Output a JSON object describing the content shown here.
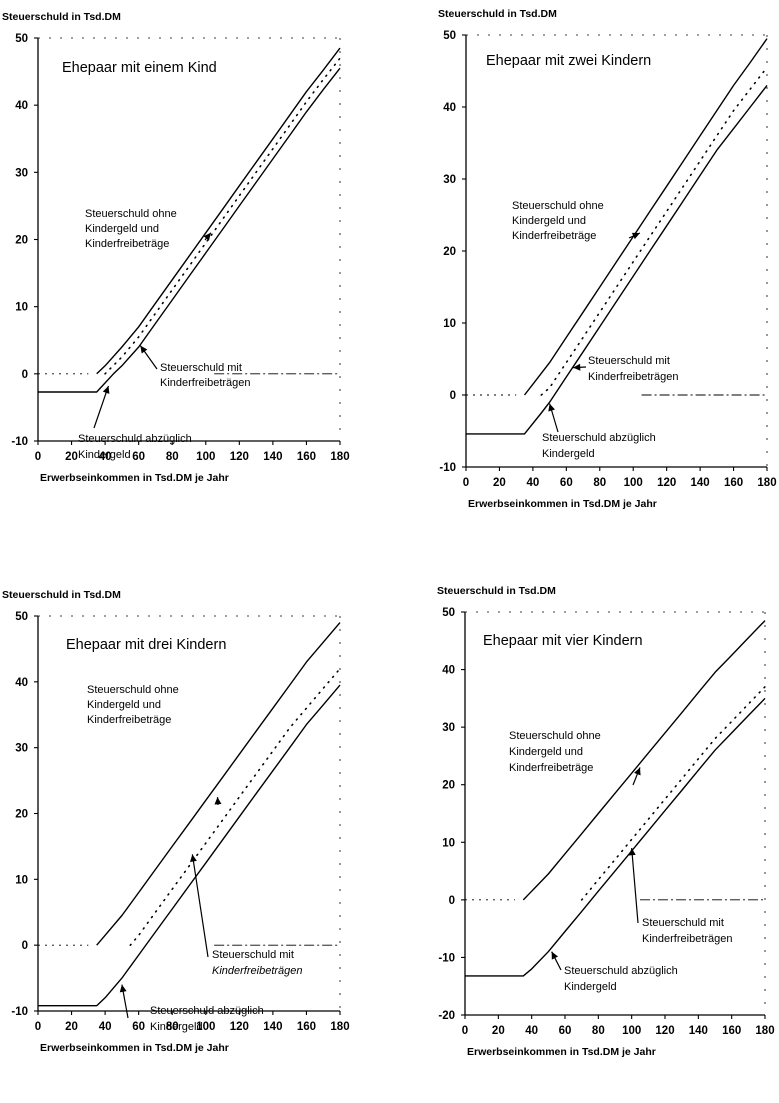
{
  "chart_data": [
    {
      "type": "line",
      "title": "Ehepaar mit einem Kind",
      "ylabel": "Steuerschuld in Tsd.DM",
      "xlabel": "Erwerbseinkommen in Tsd.DM je Jahr",
      "xlim": [
        0,
        180
      ],
      "ylim": [
        -10,
        50
      ],
      "x_ticks": [
        "0",
        "20",
        "40",
        "60",
        "80",
        "100",
        "120",
        "140",
        "160",
        "180"
      ],
      "y_ticks": [
        "50",
        "40",
        "30",
        "20",
        "10",
        "0",
        "-10"
      ],
      "series": [
        {
          "style": "solid",
          "x": [
            35,
            40,
            50,
            60,
            70,
            80,
            90,
            100,
            110,
            120,
            130,
            140,
            150,
            160,
            170,
            180
          ],
          "y": [
            0,
            1.2,
            4,
            7,
            10.5,
            14,
            17.5,
            21,
            24.5,
            28,
            31.5,
            35,
            38.5,
            42,
            45.2,
            48.5
          ]
        },
        {
          "style": "dotted",
          "x": [
            40,
            50,
            60,
            70,
            80,
            90,
            100,
            110,
            120,
            130,
            140,
            150,
            160,
            170,
            180
          ],
          "y": [
            0,
            2.5,
            5.5,
            9,
            12.5,
            16,
            19.5,
            23,
            26.5,
            30,
            33.5,
            37,
            40.5,
            43.8,
            47
          ]
        },
        {
          "style": "solid",
          "x": [
            0,
            35,
            45,
            50,
            60,
            70,
            80,
            90,
            100,
            110,
            120,
            130,
            140,
            150,
            160,
            170,
            180
          ],
          "y": [
            -2.7,
            -2.7,
            0,
            1.2,
            4,
            7.5,
            11,
            14.5,
            18,
            21.5,
            25,
            28.5,
            32,
            35.5,
            39,
            42.3,
            45.5
          ]
        }
      ],
      "annotations": [
        [
          "Steuerschuld ohne",
          "Kindergeld und",
          "Kinderfreibeträge"
        ],
        [
          "Steuerschuld mit",
          "Kinderfreibeträgen"
        ],
        [
          "Steuerschuld abzüglich",
          "Kindergeld"
        ]
      ]
    },
    {
      "type": "line",
      "title": "Ehepaar mit zwei Kindern",
      "ylabel": "Steuerschuld in Tsd.DM",
      "xlabel": "Erwerbseinkommen in Tsd.DM je Jahr",
      "xlim": [
        0,
        180
      ],
      "ylim": [
        -10,
        50
      ],
      "x_ticks": [
        "0",
        "20",
        "40",
        "60",
        "80",
        "100",
        "120",
        "140",
        "160",
        "180"
      ],
      "y_ticks": [
        "50",
        "40",
        "30",
        "20",
        "10",
        "0",
        "-10"
      ],
      "series": [
        {
          "style": "solid",
          "x": [
            35,
            40,
            50,
            60,
            70,
            80,
            90,
            100,
            110,
            120,
            130,
            140,
            150,
            160,
            170,
            180
          ],
          "y": [
            0,
            1.5,
            4.5,
            8,
            11.5,
            15,
            18.5,
            22,
            25.5,
            29,
            32.5,
            36,
            39.5,
            43,
            46.2,
            49.5
          ]
        },
        {
          "style": "dotted",
          "x": [
            45,
            50,
            60,
            70,
            80,
            90,
            100,
            110,
            120,
            130,
            140,
            150,
            160,
            170,
            180
          ],
          "y": [
            0,
            1,
            4.5,
            8,
            11.5,
            15,
            18.5,
            22,
            25.5,
            29,
            32.5,
            36,
            39.5,
            42.5,
            45.5
          ]
        },
        {
          "style": "solid",
          "x": [
            0,
            35,
            45,
            50,
            60,
            70,
            80,
            90,
            100,
            110,
            120,
            130,
            140,
            150,
            160,
            170,
            180
          ],
          "y": [
            -5.4,
            -5.4,
            -2.5,
            -1,
            2.5,
            6,
            9.5,
            13,
            16.5,
            20,
            23.5,
            27,
            30.5,
            34,
            37,
            40,
            43
          ]
        }
      ],
      "annotations": [
        [
          "Steuerschuld ohne",
          "Kindergeld und",
          "Kinderfreibeträge"
        ],
        [
          "Steuerschuld mit",
          "Kinderfreibeträgen"
        ],
        [
          "Steuerschuld abzüglich",
          "Kindergeld"
        ]
      ]
    },
    {
      "type": "line",
      "title": "Ehepaar mit drei Kindern",
      "ylabel": "Steuerschuld in Tsd.DM",
      "xlabel": "Erwerbseinkommen in Tsd.DM je Jahr",
      "xlim": [
        0,
        180
      ],
      "ylim": [
        -10,
        50
      ],
      "x_ticks": [
        "0",
        "20",
        "40",
        "60",
        "80",
        "100",
        "120",
        "140",
        "160",
        "180"
      ],
      "y_ticks": [
        "50",
        "40",
        "30",
        "20",
        "10",
        "0",
        "-10"
      ],
      "series": [
        {
          "style": "solid",
          "x": [
            35,
            40,
            50,
            60,
            70,
            80,
            90,
            100,
            110,
            120,
            130,
            140,
            150,
            160,
            170,
            180
          ],
          "y": [
            0,
            1.5,
            4.5,
            8,
            11.5,
            15,
            18.5,
            22,
            25.5,
            29,
            32.5,
            36,
            39.5,
            43,
            46,
            49
          ]
        },
        {
          "style": "dotted",
          "x": [
            55,
            60,
            70,
            80,
            90,
            100,
            110,
            120,
            130,
            140,
            150,
            160,
            170,
            180
          ],
          "y": [
            0,
            1.5,
            5,
            8.5,
            12,
            15.5,
            19,
            22.5,
            26,
            29.5,
            33,
            36,
            39,
            42
          ]
        },
        {
          "style": "solid",
          "x": [
            0,
            35,
            40,
            50,
            60,
            70,
            80,
            90,
            100,
            110,
            120,
            130,
            140,
            150,
            160,
            170,
            180
          ],
          "y": [
            -9.2,
            -9.2,
            -8,
            -5,
            -1.5,
            2,
            5.5,
            9,
            12.5,
            16,
            19.5,
            23,
            26.5,
            30,
            33.5,
            36.5,
            39.5
          ]
        }
      ],
      "annotations": [
        [
          "Steuerschuld ohne",
          "Kindergeld und",
          "Kinderfreibeträge"
        ],
        [
          "Steuerschuld mit",
          "Kinderfreibeträgen"
        ],
        [
          "Steuerschuld abzüglich",
          "Kindergeld"
        ]
      ]
    },
    {
      "type": "line",
      "title": "Ehepaar mit vier Kindern",
      "ylabel": "Steuerschuld in Tsd.DM",
      "xlabel": "Erwerbseinkommen in Tsd.DM je Jahr",
      "xlim": [
        0,
        180
      ],
      "ylim": [
        -20,
        50
      ],
      "x_ticks": [
        "0",
        "20",
        "40",
        "60",
        "80",
        "100",
        "120",
        "140",
        "160",
        "180"
      ],
      "y_ticks": [
        "50",
        "40",
        "30",
        "20",
        "10",
        "0",
        "-10",
        "-20"
      ],
      "series": [
        {
          "style": "solid",
          "x": [
            35,
            40,
            50,
            60,
            70,
            80,
            90,
            100,
            110,
            120,
            130,
            140,
            150,
            160,
            170,
            180
          ],
          "y": [
            0,
            1.5,
            4.5,
            8,
            11.5,
            15,
            18.5,
            22,
            25.5,
            29,
            32.5,
            36,
            39.5,
            42.5,
            45.5,
            48.5
          ]
        },
        {
          "style": "dotted",
          "x": [
            70,
            80,
            90,
            100,
            110,
            120,
            130,
            140,
            150,
            160,
            170,
            180
          ],
          "y": [
            0,
            3.5,
            7,
            10.5,
            14,
            17.5,
            21,
            24.5,
            28,
            31,
            34,
            37
          ]
        },
        {
          "style": "solid",
          "x": [
            0,
            35,
            40,
            50,
            60,
            70,
            80,
            90,
            100,
            110,
            120,
            130,
            140,
            150,
            160,
            170,
            180
          ],
          "y": [
            -13.2,
            -13.2,
            -12,
            -9,
            -5.5,
            -2,
            1.5,
            5,
            8.5,
            12,
            15.5,
            19,
            22.5,
            26,
            29,
            32,
            35
          ]
        }
      ],
      "annotations": [
        [
          "Steuerschuld ohne",
          "Kindergeld und",
          "Kinderfreibeträge"
        ],
        [
          "Steuerschuld mit",
          "Kinderfreibeträgen"
        ],
        [
          "Steuerschuld abzüglich",
          "Kindergeld"
        ]
      ]
    }
  ]
}
